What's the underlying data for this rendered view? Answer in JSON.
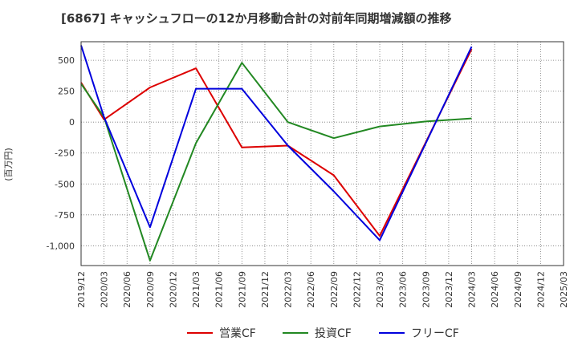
{
  "chart_data": {
    "type": "line",
    "title": "[6867]  キャッシュフローの12か月移動合計の対前年同期増減額の推移",
    "ylabel": "(百万円)",
    "xlabel": "",
    "grid": true,
    "legend_position": "bottom",
    "ylim": [
      -1160,
      650
    ],
    "yticks": [
      500,
      250,
      0,
      -250,
      -500,
      -750,
      -1000
    ],
    "ytick_labels": [
      "500",
      "250",
      "0",
      "-250",
      "-500",
      "-750",
      "-1,000"
    ],
    "x_categories": [
      "2019/12",
      "2020/03",
      "2020/06",
      "2020/09",
      "2020/12",
      "2021/03",
      "2021/06",
      "2021/09",
      "2021/12",
      "2022/03",
      "2022/06",
      "2022/09",
      "2022/12",
      "2023/03",
      "2023/06",
      "2023/09",
      "2023/12",
      "2024/03",
      "2024/06",
      "2024/09",
      "2024/12",
      "2025/03"
    ],
    "series": [
      {
        "name": "営業CF",
        "color": "#dd0000",
        "x": [
          "2019/12",
          "2020/03",
          "2020/09",
          "2021/03",
          "2021/09",
          "2022/03",
          "2022/09",
          "2023/03",
          "2024/03"
        ],
        "values": [
          320,
          20,
          280,
          435,
          -205,
          -190,
          -430,
          -920,
          590
        ]
      },
      {
        "name": "投資CF",
        "color": "#228822",
        "x": [
          "2019/12",
          "2020/03",
          "2020/09",
          "2021/03",
          "2021/09",
          "2022/03",
          "2022/09",
          "2023/03",
          "2023/09",
          "2024/03"
        ],
        "values": [
          310,
          40,
          -1120,
          -170,
          480,
          0,
          -130,
          -35,
          5,
          30
        ]
      },
      {
        "name": "フリーCF",
        "color": "#0000dd",
        "x": [
          "2019/12",
          "2020/03",
          "2020/09",
          "2021/03",
          "2021/09",
          "2022/03",
          "2022/09",
          "2023/03",
          "2024/03"
        ],
        "values": [
          620,
          40,
          -850,
          270,
          270,
          -190,
          -560,
          -955,
          610
        ]
      }
    ]
  }
}
